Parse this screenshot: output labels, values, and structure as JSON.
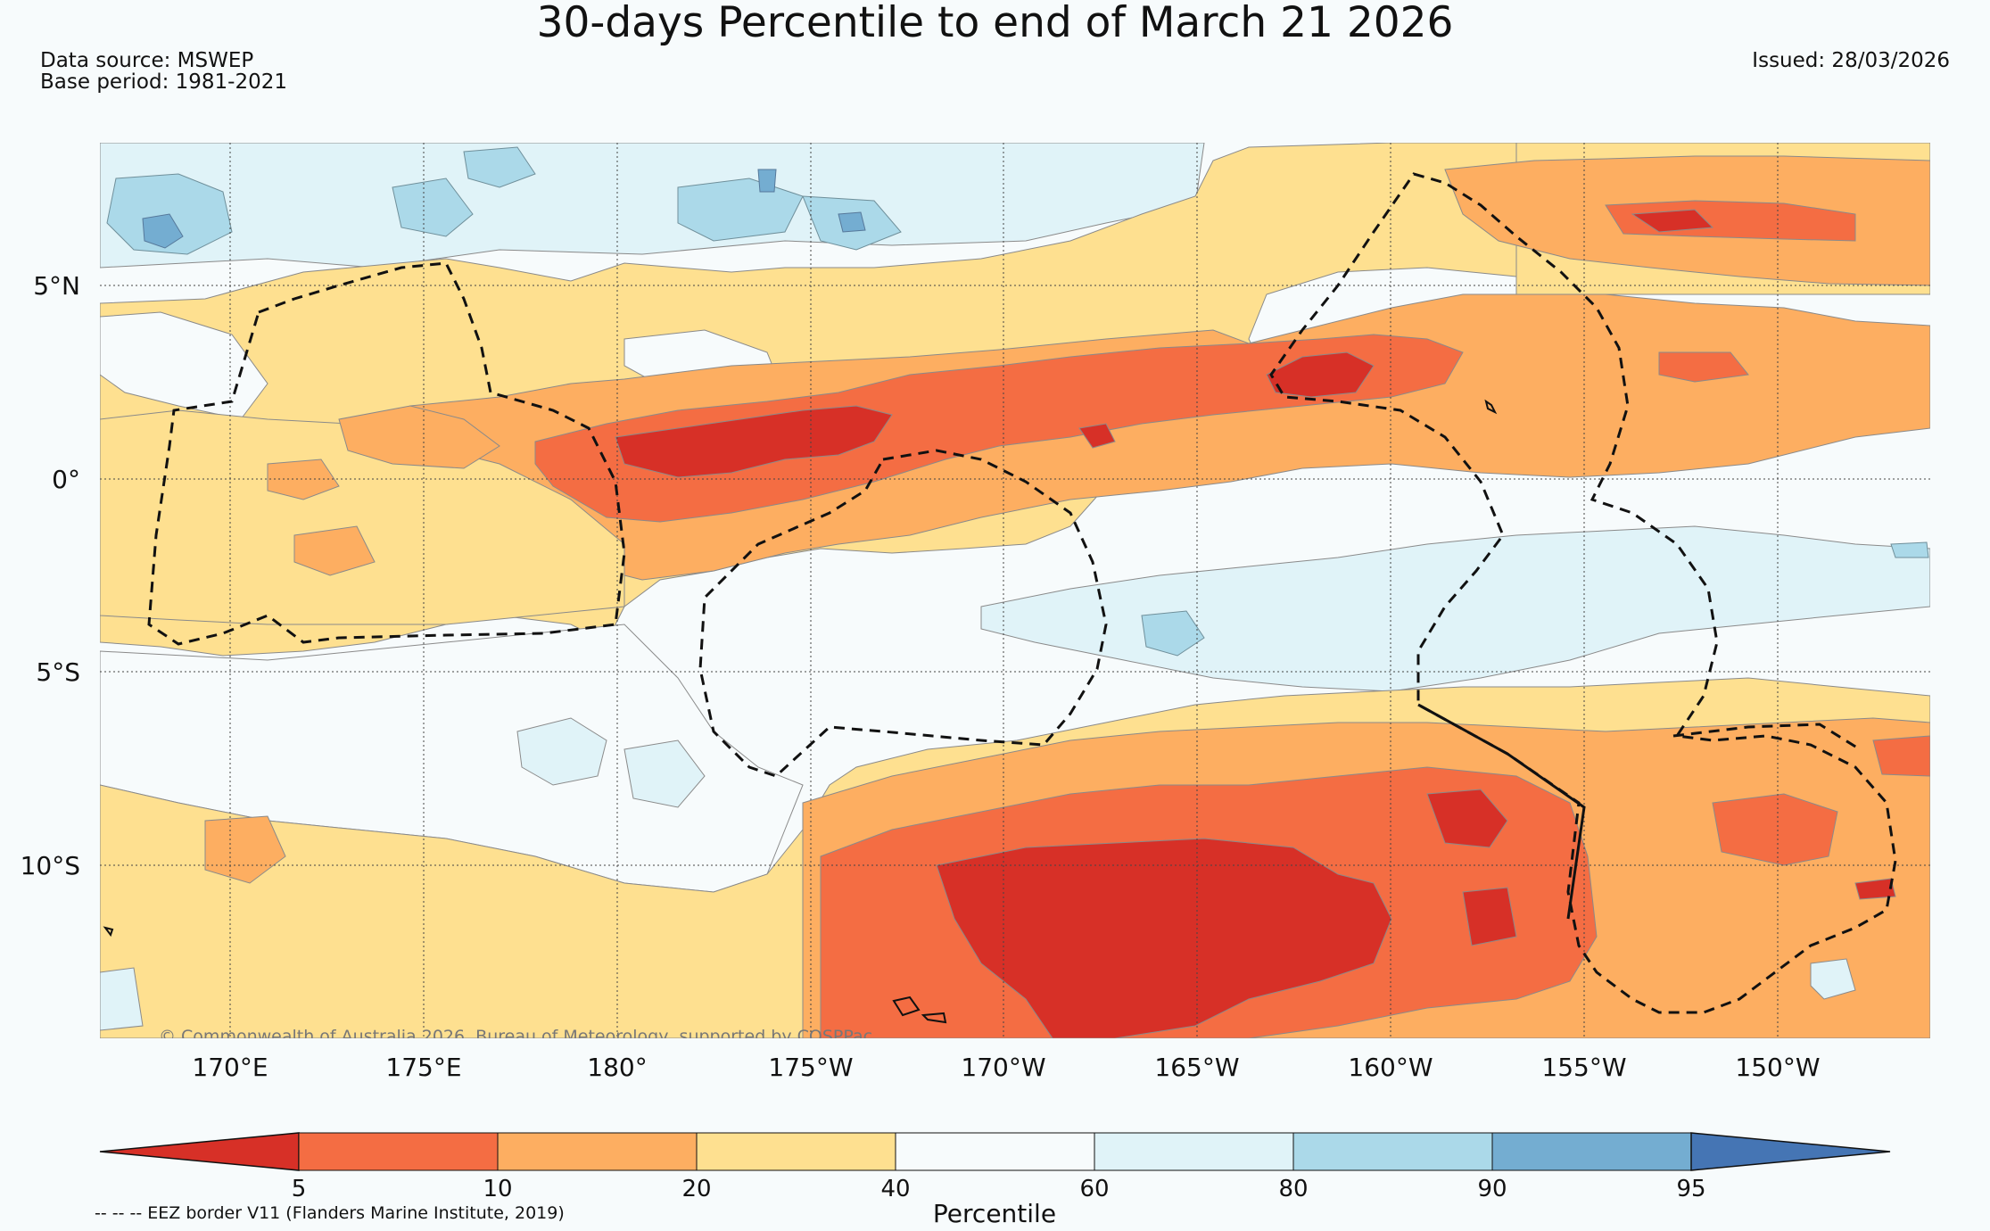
{
  "title": "30-days Percentile to end of March 21 2026",
  "data_source": "Data source: MSWEP",
  "base_period": "Base period: 1981-2021",
  "issued": "Issued: 28/03/2026",
  "copyright": "© Commonwealth of Australia 2026, Bureau of Meteorology, supported by COSPPac",
  "eez_note": "-- -- -- EEZ border V11 (Flanders Marine Institute, 2019)",
  "longitude_labels": [
    "170°E",
    "175°E",
    "180°",
    "175°W",
    "170°W",
    "165°W",
    "160°W",
    "155°W",
    "150°W"
  ],
  "latitude_labels": [
    "5°N",
    "0°",
    "5°S",
    "10°S"
  ],
  "colorbar": {
    "label": "Percentile",
    "ticks": [
      "5",
      "10",
      "20",
      "40",
      "60",
      "80",
      "90",
      "95"
    ],
    "colors": {
      "lt5": "#d73027",
      "p5_10": "#f46d43",
      "p10_20": "#fdae61",
      "p20_40": "#fee090",
      "p40_60": "#f7fbfc",
      "p60_80": "#e0f3f8",
      "p80_90": "#abd9e9",
      "p90_95": "#74add1",
      "gt95": "#4575b4"
    }
  }
}
